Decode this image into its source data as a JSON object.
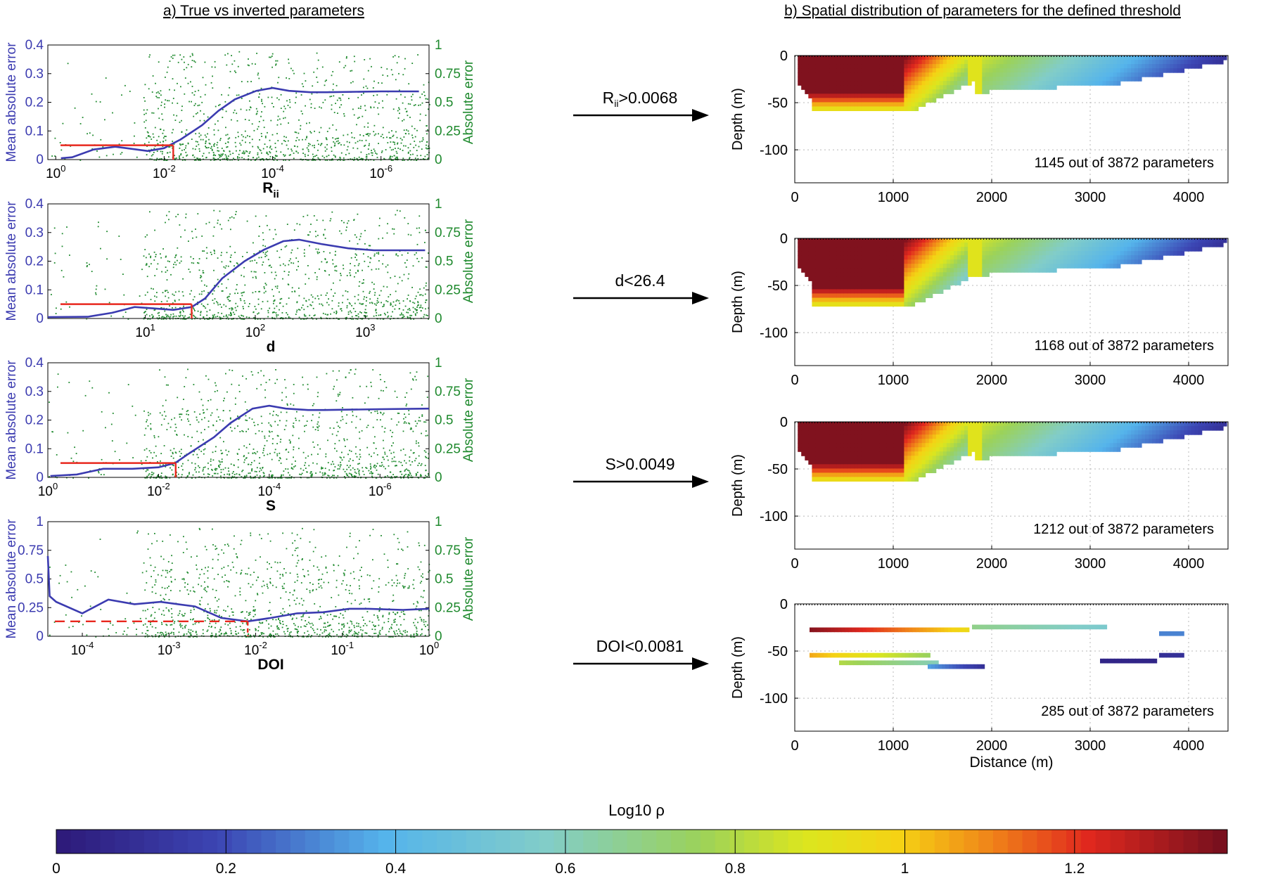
{
  "panel_titles": {
    "left": "a) True vs inverted parameters",
    "right": "b) Spatial distribution of parameters for the defined threshold"
  },
  "colors": {
    "mean_line": "#3b3bb0",
    "absolute_points": "#1f8a2e",
    "threshold": "#e8281e",
    "axis": "#000000",
    "grid": "#b8b8b8"
  },
  "colorbar": {
    "title": "Log10 ρ",
    "range": [
      0,
      1.38
    ],
    "ticks": [
      "0",
      "0.2",
      "0.4",
      "0.6",
      "0.8",
      "1",
      "1.2"
    ],
    "tick_values": [
      0,
      0.2,
      0.4,
      0.6,
      0.8,
      1.0,
      1.2
    ],
    "colormap": "jet-like"
  },
  "chart_data": [
    {
      "type": "line",
      "panel": "a-1",
      "xlabel": "R",
      "xlabel_sub": "ii",
      "xscale": "log",
      "x_reversed": true,
      "xticks": [
        {
          "value": 1,
          "label": "10",
          "exp": "0"
        },
        {
          "value": 0.01,
          "label": "10",
          "exp": "-2"
        },
        {
          "value": 0.0001,
          "label": "10",
          "exp": "-4"
        },
        {
          "value": 1e-06,
          "label": "10",
          "exp": "-6"
        }
      ],
      "ylabel_left": "Mean absolute error",
      "ylabel_right": "Absolute error",
      "ylim_left": [
        0,
        0.4
      ],
      "yticks_left": [
        "0",
        "0.1",
        "0.2",
        "0.3",
        "0.4"
      ],
      "ylim_right": [
        0,
        1
      ],
      "yticks_right": [
        "0",
        "0.25",
        "0.5",
        "0.75",
        "1"
      ],
      "mean_line": {
        "x": [
          0.8,
          0.5,
          0.2,
          0.08,
          0.05,
          0.02,
          0.01,
          0.008,
          0.005,
          0.002,
          0.001,
          0.0005,
          0.0002,
          0.0001,
          5e-05,
          2e-05,
          1e-05,
          1e-06,
          2e-07
        ],
        "y": [
          0.005,
          0.008,
          0.035,
          0.045,
          0.04,
          0.03,
          0.04,
          0.05,
          0.07,
          0.12,
          0.17,
          0.21,
          0.24,
          0.25,
          0.24,
          0.235,
          0.235,
          0.238,
          0.238
        ]
      },
      "threshold": {
        "x": 0.0068,
        "y": 0.05,
        "dashed": false
      }
    },
    {
      "type": "line",
      "panel": "a-2",
      "xlabel": "d",
      "xlabel_sub": "",
      "xscale": "log",
      "x_reversed": false,
      "xticks": [
        {
          "value": 10,
          "label": "10",
          "exp": "1"
        },
        {
          "value": 100,
          "label": "10",
          "exp": "2"
        },
        {
          "value": 1000,
          "label": "10",
          "exp": "3"
        }
      ],
      "ylabel_left": "Mean absolute error",
      "ylabel_right": "Absolute error",
      "ylim_left": [
        0,
        0.4
      ],
      "yticks_left": [
        "0",
        "0.1",
        "0.2",
        "0.3",
        "0.4"
      ],
      "ylim_right": [
        0,
        1
      ],
      "yticks_right": [
        "0",
        "0.25",
        "0.5",
        "0.75",
        "1"
      ],
      "mean_line": {
        "x": [
          1.3,
          3,
          5,
          8,
          12,
          18,
          26.4,
          35,
          50,
          80,
          120,
          180,
          250,
          400,
          700,
          1200,
          2000,
          3500
        ],
        "y": [
          0.005,
          0.006,
          0.02,
          0.04,
          0.035,
          0.03,
          0.04,
          0.07,
          0.14,
          0.2,
          0.24,
          0.27,
          0.275,
          0.26,
          0.245,
          0.238,
          0.238,
          0.238
        ]
      },
      "threshold": {
        "x": 26.4,
        "y": 0.05,
        "dashed": false
      }
    },
    {
      "type": "line",
      "panel": "a-3",
      "xlabel": "S",
      "xlabel_sub": "",
      "xscale": "log",
      "x_reversed": true,
      "xticks": [
        {
          "value": 1,
          "label": "10",
          "exp": "0"
        },
        {
          "value": 0.01,
          "label": "10",
          "exp": "-2"
        },
        {
          "value": 0.0001,
          "label": "10",
          "exp": "-4"
        },
        {
          "value": 1e-06,
          "label": "10",
          "exp": "-6"
        }
      ],
      "ylabel_left": "Mean absolute error",
      "ylabel_right": "Absolute error",
      "ylim_left": [
        0,
        0.4
      ],
      "yticks_left": [
        "0",
        "0.1",
        "0.2",
        "0.3",
        "0.4"
      ],
      "ylim_right": [
        0,
        1
      ],
      "yticks_right": [
        "0",
        "0.25",
        "0.5",
        "0.75",
        "1"
      ],
      "mean_line": {
        "x": [
          0.9,
          0.3,
          0.1,
          0.03,
          0.01,
          0.005,
          0.003,
          0.001,
          0.0005,
          0.0002,
          0.0001,
          5e-05,
          2e-05,
          1e-05,
          1e-06,
          1e-07
        ],
        "y": [
          0.005,
          0.01,
          0.03,
          0.03,
          0.035,
          0.05,
          0.08,
          0.14,
          0.19,
          0.24,
          0.25,
          0.24,
          0.235,
          0.235,
          0.238,
          0.24
        ]
      },
      "threshold": {
        "x": 0.0049,
        "y": 0.05,
        "dashed": false
      }
    },
    {
      "type": "line",
      "panel": "a-4",
      "xlabel": "DOI",
      "xlabel_sub": "",
      "xscale": "log",
      "x_reversed": false,
      "xticks": [
        {
          "value": 0.0001,
          "label": "10",
          "exp": "-4"
        },
        {
          "value": 0.001,
          "label": "10",
          "exp": "-3"
        },
        {
          "value": 0.01,
          "label": "10",
          "exp": "-2"
        },
        {
          "value": 0.1,
          "label": "10",
          "exp": "-1"
        },
        {
          "value": 1,
          "label": "10",
          "exp": "0"
        }
      ],
      "ylabel_left": "Mean absolute error",
      "ylabel_right": "Absolute error",
      "ylim_left": [
        0,
        1
      ],
      "yticks_left": [
        "0",
        "0.25",
        "0.5",
        "0.75",
        "1"
      ],
      "ylim_right": [
        0,
        1
      ],
      "yticks_right": [
        "0",
        "0.25",
        "0.5",
        "0.75",
        "1"
      ],
      "mean_line": {
        "x": [
          4e-05,
          4.2e-05,
          5e-05,
          0.0001,
          0.0002,
          0.0004,
          0.0008,
          0.002,
          0.004,
          0.0081,
          0.015,
          0.03,
          0.06,
          0.12,
          0.2,
          0.5,
          1.0
        ],
        "y": [
          0.7,
          0.35,
          0.3,
          0.2,
          0.32,
          0.28,
          0.3,
          0.26,
          0.16,
          0.13,
          0.16,
          0.2,
          0.21,
          0.24,
          0.24,
          0.23,
          0.24
        ]
      },
      "threshold": {
        "x": 0.0081,
        "y": 0.13,
        "dashed": true
      }
    }
  ],
  "thresholds": [
    {
      "label": "R",
      "sub": "ii",
      "rest": ">0.0068"
    },
    {
      "label": "d<26.4",
      "sub": "",
      "rest": ""
    },
    {
      "label": "S>0.0049",
      "sub": "",
      "rest": ""
    },
    {
      "label": "DOI<0.0081",
      "sub": "",
      "rest": ""
    }
  ],
  "sections": [
    {
      "type": "heatmap",
      "xlim": [
        0,
        4400
      ],
      "xticks": [
        "0",
        "1000",
        "2000",
        "3000",
        "4000"
      ],
      "ylim": [
        -135,
        0
      ],
      "yticks": [
        "0",
        "-50",
        "-100"
      ],
      "ylabel": "Depth (m)",
      "xlabel": "",
      "count_text": "1145 out of 3872 parameters"
    },
    {
      "type": "heatmap",
      "xlim": [
        0,
        4400
      ],
      "xticks": [
        "0",
        "1000",
        "2000",
        "3000",
        "4000"
      ],
      "ylim": [
        -135,
        0
      ],
      "yticks": [
        "0",
        "-50",
        "-100"
      ],
      "ylabel": "Depth (m)",
      "xlabel": "",
      "count_text": "1168 out of 3872 parameters"
    },
    {
      "type": "heatmap",
      "xlim": [
        0,
        4400
      ],
      "xticks": [
        "0",
        "1000",
        "2000",
        "3000",
        "4000"
      ],
      "ylim": [
        -135,
        0
      ],
      "yticks": [
        "0",
        "-50",
        "-100"
      ],
      "ylabel": "Depth (m)",
      "xlabel": "",
      "count_text": "1212 out of 3872 parameters"
    },
    {
      "type": "heatmap",
      "xlim": [
        0,
        4400
      ],
      "xticks": [
        "0",
        "1000",
        "2000",
        "3000",
        "4000"
      ],
      "ylim": [
        -135,
        0
      ],
      "yticks": [
        "0",
        "-50",
        "-100"
      ],
      "ylabel": "Depth (m)",
      "xlabel": "Distance (m)",
      "count_text": "285 out of 3872 parameters"
    }
  ]
}
